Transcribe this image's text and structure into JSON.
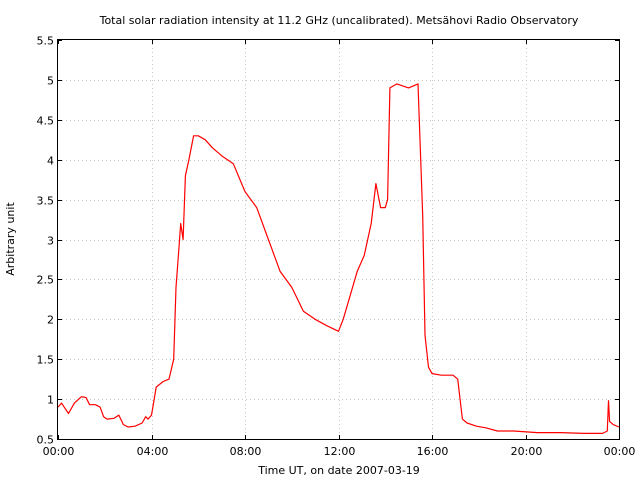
{
  "chart_data": {
    "type": "line",
    "title": "Total solar radiation intensity at 11.2 GHz (uncalibrated). Metsähovi Radio Observatory",
    "xlabel": "Time UT, on date 2007-03-19",
    "ylabel": "Arbitrary unit",
    "xlim": [
      0,
      24
    ],
    "ylim": [
      0.5,
      5.5
    ],
    "x_ticks": [
      0,
      4,
      8,
      12,
      16,
      20,
      24
    ],
    "x_tick_labels": [
      "00:00",
      "04:00",
      "08:00",
      "12:00",
      "16:00",
      "20:00",
      "00:00"
    ],
    "y_ticks": [
      0.5,
      1,
      1.5,
      2,
      2.5,
      3,
      3.5,
      4,
      4.5,
      5,
      5.5
    ],
    "y_tick_labels": [
      "0.5",
      "1",
      "1.5",
      "2",
      "2.5",
      "3",
      "3.5",
      "4",
      "4.5",
      "5",
      "5.5"
    ],
    "grid": true,
    "color": "#ff0000",
    "series": [
      {
        "name": "",
        "x": [
          0.0,
          0.15,
          0.45,
          0.7,
          1.0,
          1.2,
          1.35,
          1.6,
          1.8,
          1.95,
          2.1,
          2.4,
          2.6,
          2.8,
          3.0,
          3.3,
          3.6,
          3.75,
          3.85,
          4.0,
          4.2,
          4.5,
          4.75,
          4.95,
          5.05,
          5.15,
          5.25,
          5.35,
          5.45,
          5.6,
          5.8,
          6.0,
          6.3,
          6.6,
          7.0,
          7.5,
          8.0,
          8.5,
          9.0,
          9.5,
          10.0,
          10.5,
          11.0,
          11.5,
          12.0,
          12.2,
          12.5,
          12.8,
          13.1,
          13.4,
          13.6,
          13.8,
          14.0,
          14.1,
          14.2,
          14.5,
          15.0,
          15.4,
          15.6,
          15.7,
          15.85,
          16.0,
          16.4,
          16.9,
          17.1,
          17.3,
          17.5,
          17.9,
          18.3,
          18.8,
          19.5,
          20.5,
          21.5,
          22.5,
          23.3,
          23.5,
          23.55,
          23.6,
          23.75,
          24.0
        ],
        "y": [
          0.9,
          0.95,
          0.82,
          0.95,
          1.03,
          1.02,
          0.93,
          0.93,
          0.9,
          0.78,
          0.75,
          0.76,
          0.8,
          0.68,
          0.65,
          0.66,
          0.7,
          0.78,
          0.75,
          0.8,
          1.15,
          1.22,
          1.25,
          1.5,
          2.4,
          2.8,
          3.2,
          3.0,
          3.8,
          4.0,
          4.3,
          4.3,
          4.25,
          4.15,
          4.05,
          3.95,
          3.6,
          3.4,
          3.0,
          2.6,
          2.4,
          2.1,
          2.0,
          1.92,
          1.85,
          2.0,
          2.3,
          2.6,
          2.8,
          3.2,
          3.7,
          3.4,
          3.4,
          3.5,
          4.9,
          4.95,
          4.9,
          4.95,
          3.3,
          1.8,
          1.4,
          1.32,
          1.3,
          1.3,
          1.25,
          0.75,
          0.7,
          0.66,
          0.64,
          0.6,
          0.6,
          0.58,
          0.58,
          0.57,
          0.57,
          0.6,
          0.98,
          0.72,
          0.68,
          0.65
        ]
      }
    ]
  }
}
